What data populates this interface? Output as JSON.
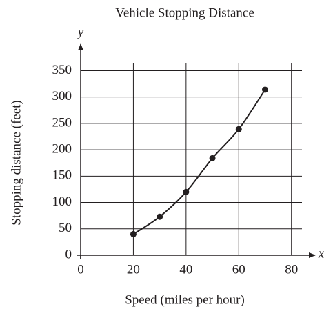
{
  "chart_data": {
    "type": "scatter",
    "title": "Vehicle Stopping Distance",
    "x_label": "Speed (miles per hour)",
    "y_label": "Stopping distance (feet)",
    "x_axis_name": "x",
    "y_axis_name": "y",
    "x": [
      20,
      30,
      40,
      50,
      60,
      70
    ],
    "values": [
      40,
      73,
      120,
      184,
      239,
      314
    ],
    "color": "#231f20",
    "xlim": [
      0,
      84
    ],
    "ylim": [
      0,
      365
    ],
    "xticks": [
      0,
      20,
      40,
      60,
      80
    ],
    "yticks": [
      0,
      50,
      100,
      150,
      200,
      250,
      300,
      350
    ],
    "grid": true
  }
}
